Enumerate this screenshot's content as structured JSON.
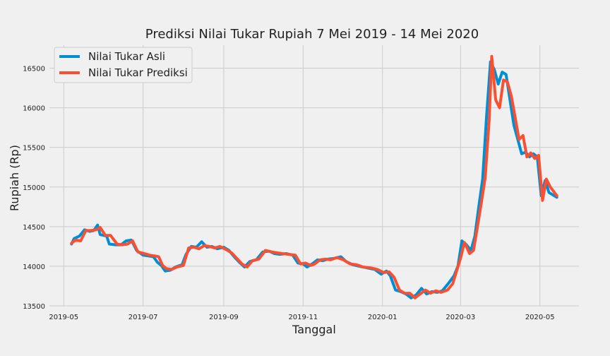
{
  "chart_data": {
    "type": "line",
    "title": "Prediksi Nilai Tukar Rupiah 7 Mei 2019 - 14 Mei 2020",
    "xlabel": "Tanggal",
    "ylabel": "Rupiah (Rp)",
    "x_ticks": [
      "2019-05",
      "2019-07",
      "2019-09",
      "2019-11",
      "2020-01",
      "2020-03",
      "2020-05"
    ],
    "x_tick_dates": [
      "2019-05-01",
      "2019-07-01",
      "2019-09-01",
      "2019-11-01",
      "2020-01-01",
      "2020-03-01",
      "2020-05-01"
    ],
    "y_ticks": [
      13500,
      14000,
      14500,
      15000,
      15500,
      16000,
      16500
    ],
    "xlim": [
      "2019-04-20",
      "2020-05-31"
    ],
    "ylim": [
      13500,
      16790
    ],
    "grid": true,
    "legend_position": "top-left",
    "series": [
      {
        "name": "Nilai Tukar Asli",
        "color": "#008fd5",
        "points": [
          [
            "2019-05-07",
            14280
          ],
          [
            "2019-05-09",
            14350
          ],
          [
            "2019-05-13",
            14380
          ],
          [
            "2019-05-17",
            14460
          ],
          [
            "2019-05-21",
            14440
          ],
          [
            "2019-05-24",
            14450
          ],
          [
            "2019-05-27",
            14520
          ],
          [
            "2019-05-29",
            14400
          ],
          [
            "2019-06-03",
            14380
          ],
          [
            "2019-06-05",
            14280
          ],
          [
            "2019-06-10",
            14270
          ],
          [
            "2019-06-14",
            14270
          ],
          [
            "2019-06-18",
            14320
          ],
          [
            "2019-06-22",
            14330
          ],
          [
            "2019-06-26",
            14200
          ],
          [
            "2019-07-01",
            14140
          ],
          [
            "2019-07-05",
            14130
          ],
          [
            "2019-07-09",
            14120
          ],
          [
            "2019-07-12",
            14050
          ],
          [
            "2019-07-15",
            14010
          ],
          [
            "2019-07-18",
            13940
          ],
          [
            "2019-07-22",
            13950
          ],
          [
            "2019-07-26",
            13990
          ],
          [
            "2019-07-31",
            14020
          ],
          [
            "2019-08-03",
            14150
          ],
          [
            "2019-08-07",
            14250
          ],
          [
            "2019-08-11",
            14240
          ],
          [
            "2019-08-15",
            14310
          ],
          [
            "2019-08-19",
            14240
          ],
          [
            "2019-08-23",
            14250
          ],
          [
            "2019-08-27",
            14220
          ],
          [
            "2019-09-01",
            14240
          ],
          [
            "2019-09-05",
            14200
          ],
          [
            "2019-09-09",
            14120
          ],
          [
            "2019-09-13",
            14050
          ],
          [
            "2019-09-17",
            13990
          ],
          [
            "2019-09-21",
            14060
          ],
          [
            "2019-09-26",
            14080
          ],
          [
            "2019-10-01",
            14180
          ],
          [
            "2019-10-06",
            14190
          ],
          [
            "2019-10-10",
            14160
          ],
          [
            "2019-10-14",
            14150
          ],
          [
            "2019-10-19",
            14160
          ],
          [
            "2019-10-24",
            14140
          ],
          [
            "2019-10-28",
            14040
          ],
          [
            "2019-11-01",
            14030
          ],
          [
            "2019-11-04",
            13990
          ],
          [
            "2019-11-08",
            14030
          ],
          [
            "2019-11-12",
            14080
          ],
          [
            "2019-11-16",
            14070
          ],
          [
            "2019-11-20",
            14090
          ],
          [
            "2019-11-25",
            14100
          ],
          [
            "2019-11-30",
            14120
          ],
          [
            "2019-12-04",
            14060
          ],
          [
            "2019-12-09",
            14020
          ],
          [
            "2019-12-14",
            14000
          ],
          [
            "2019-12-20",
            13980
          ],
          [
            "2019-12-26",
            13960
          ],
          [
            "2019-12-31",
            13900
          ],
          [
            "2020-01-04",
            13940
          ],
          [
            "2020-01-07",
            13880
          ],
          [
            "2020-01-11",
            13700
          ],
          [
            "2020-01-15",
            13680
          ],
          [
            "2020-01-19",
            13650
          ],
          [
            "2020-01-23",
            13600
          ],
          [
            "2020-01-27",
            13640
          ],
          [
            "2020-01-31",
            13720
          ],
          [
            "2020-02-04",
            13650
          ],
          [
            "2020-02-08",
            13680
          ],
          [
            "2020-02-12",
            13670
          ],
          [
            "2020-02-16",
            13690
          ],
          [
            "2020-02-21",
            13790
          ],
          [
            "2020-02-25",
            13880
          ],
          [
            "2020-02-28",
            14000
          ],
          [
            "2020-03-02",
            14320
          ],
          [
            "2020-03-05",
            14280
          ],
          [
            "2020-03-09",
            14200
          ],
          [
            "2020-03-12",
            14380
          ],
          [
            "2020-03-15",
            14750
          ],
          [
            "2020-03-18",
            15100
          ],
          [
            "2020-03-21",
            15900
          ],
          [
            "2020-03-24",
            16580
          ],
          [
            "2020-03-27",
            16480
          ],
          [
            "2020-03-30",
            16300
          ],
          [
            "2020-04-02",
            16450
          ],
          [
            "2020-04-05",
            16420
          ],
          [
            "2020-04-08",
            16100
          ],
          [
            "2020-04-11",
            15780
          ],
          [
            "2020-04-14",
            15600
          ],
          [
            "2020-04-17",
            15420
          ],
          [
            "2020-04-20",
            15440
          ],
          [
            "2020-04-23",
            15380
          ],
          [
            "2020-04-26",
            15420
          ],
          [
            "2020-04-29",
            15380
          ],
          [
            "2020-05-02",
            14890
          ],
          [
            "2020-05-05",
            15080
          ],
          [
            "2020-05-08",
            14930
          ],
          [
            "2020-05-14",
            14870
          ]
        ]
      },
      {
        "name": "Nilai Tukar Prediksi",
        "color": "#fc4f30",
        "points": [
          [
            "2019-05-07",
            14290
          ],
          [
            "2019-05-10",
            14330
          ],
          [
            "2019-05-14",
            14320
          ],
          [
            "2019-05-18",
            14450
          ],
          [
            "2019-05-22",
            14450
          ],
          [
            "2019-05-26",
            14460
          ],
          [
            "2019-05-29",
            14490
          ],
          [
            "2019-06-02",
            14390
          ],
          [
            "2019-06-06",
            14390
          ],
          [
            "2019-06-11",
            14280
          ],
          [
            "2019-06-15",
            14270
          ],
          [
            "2019-06-19",
            14280
          ],
          [
            "2019-06-23",
            14320
          ],
          [
            "2019-06-27",
            14180
          ],
          [
            "2019-07-02",
            14160
          ],
          [
            "2019-07-06",
            14140
          ],
          [
            "2019-07-10",
            14130
          ],
          [
            "2019-07-13",
            14120
          ],
          [
            "2019-07-16",
            14010
          ],
          [
            "2019-07-19",
            13970
          ],
          [
            "2019-07-23",
            13960
          ],
          [
            "2019-07-27",
            13990
          ],
          [
            "2019-08-01",
            14010
          ],
          [
            "2019-08-05",
            14230
          ],
          [
            "2019-08-09",
            14240
          ],
          [
            "2019-08-13",
            14220
          ],
          [
            "2019-08-17",
            14260
          ],
          [
            "2019-08-21",
            14250
          ],
          [
            "2019-08-25",
            14230
          ],
          [
            "2019-08-29",
            14250
          ],
          [
            "2019-09-03",
            14210
          ],
          [
            "2019-09-07",
            14170
          ],
          [
            "2019-09-11",
            14100
          ],
          [
            "2019-09-15",
            14030
          ],
          [
            "2019-09-19",
            13990
          ],
          [
            "2019-09-23",
            14070
          ],
          [
            "2019-09-28",
            14090
          ],
          [
            "2019-10-03",
            14200
          ],
          [
            "2019-10-08",
            14180
          ],
          [
            "2019-10-12",
            14170
          ],
          [
            "2019-10-16",
            14160
          ],
          [
            "2019-10-21",
            14150
          ],
          [
            "2019-10-26",
            14140
          ],
          [
            "2019-10-30",
            14030
          ],
          [
            "2019-11-03",
            14040
          ],
          [
            "2019-11-07",
            14010
          ],
          [
            "2019-11-10",
            14030
          ],
          [
            "2019-11-14",
            14080
          ],
          [
            "2019-11-18",
            14090
          ],
          [
            "2019-11-22",
            14080
          ],
          [
            "2019-11-27",
            14110
          ],
          [
            "2019-12-02",
            14080
          ],
          [
            "2019-12-07",
            14030
          ],
          [
            "2019-12-12",
            14020
          ],
          [
            "2019-12-17",
            13990
          ],
          [
            "2019-12-23",
            13980
          ],
          [
            "2019-12-28",
            13960
          ],
          [
            "2020-01-02",
            13920
          ],
          [
            "2020-01-06",
            13930
          ],
          [
            "2020-01-10",
            13860
          ],
          [
            "2020-01-14",
            13700
          ],
          [
            "2020-01-18",
            13660
          ],
          [
            "2020-01-22",
            13660
          ],
          [
            "2020-01-26",
            13600
          ],
          [
            "2020-01-30",
            13650
          ],
          [
            "2020-02-03",
            13700
          ],
          [
            "2020-02-07",
            13660
          ],
          [
            "2020-02-11",
            13690
          ],
          [
            "2020-02-15",
            13670
          ],
          [
            "2020-02-20",
            13700
          ],
          [
            "2020-02-24",
            13780
          ],
          [
            "2020-02-27",
            13940
          ],
          [
            "2020-03-01",
            14100
          ],
          [
            "2020-03-04",
            14300
          ],
          [
            "2020-03-08",
            14160
          ],
          [
            "2020-03-11",
            14200
          ],
          [
            "2020-03-14",
            14500
          ],
          [
            "2020-03-17",
            14800
          ],
          [
            "2020-03-20",
            15120
          ],
          [
            "2020-03-23",
            15850
          ],
          [
            "2020-03-25",
            16650
          ],
          [
            "2020-03-28",
            16100
          ],
          [
            "2020-03-31",
            16000
          ],
          [
            "2020-04-03",
            16350
          ],
          [
            "2020-04-06",
            16330
          ],
          [
            "2020-04-09",
            16150
          ],
          [
            "2020-04-12",
            15880
          ],
          [
            "2020-04-15",
            15600
          ],
          [
            "2020-04-18",
            15650
          ],
          [
            "2020-04-21",
            15380
          ],
          [
            "2020-04-24",
            15430
          ],
          [
            "2020-04-27",
            15360
          ],
          [
            "2020-04-30",
            15400
          ],
          [
            "2020-05-03",
            14830
          ],
          [
            "2020-05-06",
            15100
          ],
          [
            "2020-05-09",
            15000
          ],
          [
            "2020-05-14",
            14890
          ]
        ]
      }
    ]
  }
}
